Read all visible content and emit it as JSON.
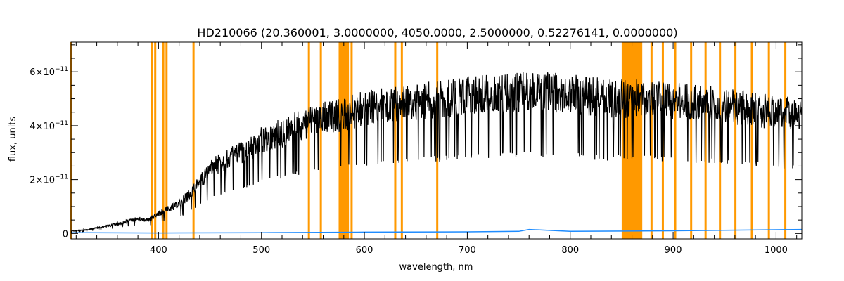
{
  "chart_data": {
    "type": "line",
    "title": "HD210066    (20.360001, 3.0000000, 4050.0000, 2.5000000, 0.52276141, 0.0000000)",
    "xlabel": "wavelength, nm",
    "ylabel": "flux, units",
    "xlim": [
      315,
      1025
    ],
    "ylim": [
      -2e-12,
      7.1e-11
    ],
    "x_ticks": [
      400,
      500,
      600,
      700,
      800,
      900,
      1000
    ],
    "x_tick_labels": [
      "400",
      "500",
      "600",
      "700",
      "800",
      "900",
      "1000"
    ],
    "y_ticks": [
      0,
      2e-11,
      4e-11,
      6e-11
    ],
    "y_tick_labels": [
      {
        "mantissa": "0",
        "exp": ""
      },
      {
        "mantissa": "2×10",
        "exp": "−11"
      },
      {
        "mantissa": "4×10",
        "exp": "−11"
      },
      {
        "mantissa": "6×10",
        "exp": "−11"
      }
    ],
    "series": [
      {
        "role": "flux",
        "color": "#000000",
        "x": [
          315,
          330,
          350,
          370,
          380,
          390,
          400,
          410,
          420,
          430,
          440,
          450,
          460,
          470,
          480,
          490,
          500,
          510,
          520,
          530,
          540,
          550,
          560,
          570,
          580,
          590,
          600,
          620,
          640,
          660,
          680,
          700,
          720,
          740,
          760,
          780,
          800,
          820,
          840,
          850,
          870,
          900,
          930,
          960,
          990,
          1025
        ],
        "y": [
          1e-12,
          1.5e-12,
          3e-12,
          5e-12,
          6e-12,
          5.5e-12,
          8e-12,
          1e-11,
          1.2e-11,
          1.6e-11,
          2.1e-11,
          2.6e-11,
          2.9e-11,
          3.1e-11,
          3.3e-11,
          3.5e-11,
          3.8e-11,
          4e-11,
          4.1e-11,
          4.3e-11,
          4.4e-11,
          4.6e-11,
          4.7e-11,
          4.8e-11,
          4.8e-11,
          5e-11,
          5.1e-11,
          5.2e-11,
          5.3e-11,
          5.4e-11,
          5.5e-11,
          5.6e-11,
          5.7e-11,
          5.75e-11,
          5.8e-11,
          5.75e-11,
          5.7e-11,
          5.6e-11,
          5.5e-11,
          5.5e-11,
          5.5e-11,
          5.4e-11,
          5.3e-11,
          5.15e-11,
          5e-11,
          4.8e-11
        ]
      },
      {
        "role": "error",
        "color": "#1e8cff",
        "x": [
          315,
          400,
          500,
          600,
          700,
          750,
          760,
          800,
          900,
          1025
        ],
        "y": [
          3e-13,
          2e-13,
          3e-13,
          5e-13,
          6e-13,
          8e-13,
          1.5e-12,
          8e-13,
          1e-12,
          1.5e-12
        ]
      }
    ],
    "masked_regions": {
      "color": "#ff9900",
      "lines": [
        315,
        393.4,
        396.8,
        404.6,
        407.8,
        434.0,
        546.1,
        557.7,
        587.6,
        630.0,
        636.4,
        670.8,
        879.0,
        890.0,
        902.0,
        917.5,
        931.5,
        945.5,
        960.5,
        976.5,
        993.0,
        1009.0
      ],
      "bands": [
        [
          575,
          585
        ],
        [
          850,
          870
        ]
      ]
    }
  }
}
